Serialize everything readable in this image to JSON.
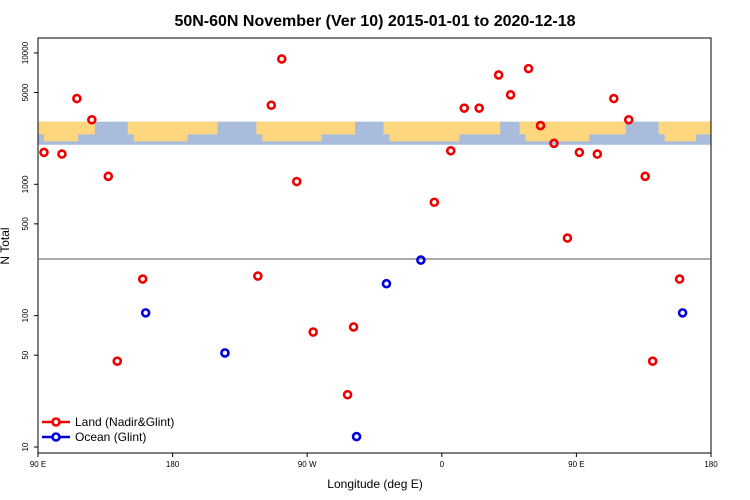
{
  "chart_data": {
    "type": "scatter",
    "title": "50N-60N November (Ver 10)   2015-01-01 to 2020-12-18",
    "xlabel": "Longitude (deg E)",
    "ylabel": "N Total",
    "xlim": [
      90,
      540
    ],
    "ylim_log": [
      9,
      13000
    ],
    "y_scale": "log",
    "x_ticks": [
      {
        "value": 90,
        "label": "90 E"
      },
      {
        "value": 180,
        "label": "180"
      },
      {
        "value": 270,
        "label": "90 W"
      },
      {
        "value": 360,
        "label": "0"
      },
      {
        "value": 450,
        "label": "90 E"
      },
      {
        "value": 540,
        "label": "180"
      }
    ],
    "y_ticks": [
      {
        "value": 10,
        "label": "10"
      },
      {
        "value": 50,
        "label": "50"
      },
      {
        "value": 100,
        "label": "100"
      },
      {
        "value": 500,
        "label": "500"
      },
      {
        "value": 1000,
        "label": "1000"
      },
      {
        "value": 5000,
        "label": "5000"
      },
      {
        "value": 10000,
        "label": "10000"
      }
    ],
    "reference_line": 270,
    "map_band": {
      "y_low": 2000,
      "y_high": 3000
    },
    "series": [
      {
        "name": "Land (Nadir&Glint)",
        "color": "#ee0000",
        "points": [
          {
            "x": 94,
            "y": 1750
          },
          {
            "x": 106,
            "y": 1700
          },
          {
            "x": 116,
            "y": 4500
          },
          {
            "x": 126,
            "y": 3100
          },
          {
            "x": 137,
            "y": 1150
          },
          {
            "x": 143,
            "y": 45
          },
          {
            "x": 160,
            "y": 190
          },
          {
            "x": 237,
            "y": 200
          },
          {
            "x": 246,
            "y": 4000
          },
          {
            "x": 253,
            "y": 9000
          },
          {
            "x": 263,
            "y": 1050
          },
          {
            "x": 274,
            "y": 75
          },
          {
            "x": 297,
            "y": 25
          },
          {
            "x": 301,
            "y": 82
          },
          {
            "x": 355,
            "y": 730
          },
          {
            "x": 366,
            "y": 1800
          },
          {
            "x": 375,
            "y": 3800
          },
          {
            "x": 385,
            "y": 3800
          },
          {
            "x": 398,
            "y": 6800
          },
          {
            "x": 406,
            "y": 4800
          },
          {
            "x": 418,
            "y": 7600
          },
          {
            "x": 426,
            "y": 2800
          },
          {
            "x": 435,
            "y": 2050
          },
          {
            "x": 444,
            "y": 390
          },
          {
            "x": 452,
            "y": 1750
          },
          {
            "x": 464,
            "y": 1700
          },
          {
            "x": 475,
            "y": 4500
          },
          {
            "x": 485,
            "y": 3100
          },
          {
            "x": 496,
            "y": 1150
          },
          {
            "x": 501,
            "y": 45
          },
          {
            "x": 519,
            "y": 190
          }
        ]
      },
      {
        "name": "Ocean (Glint)",
        "color": "#0000dd",
        "points": [
          {
            "x": 162,
            "y": 105
          },
          {
            "x": 215,
            "y": 52
          },
          {
            "x": 303,
            "y": 12
          },
          {
            "x": 323,
            "y": 175
          },
          {
            "x": 346,
            "y": 265
          },
          {
            "x": 521,
            "y": 105
          }
        ]
      }
    ]
  }
}
